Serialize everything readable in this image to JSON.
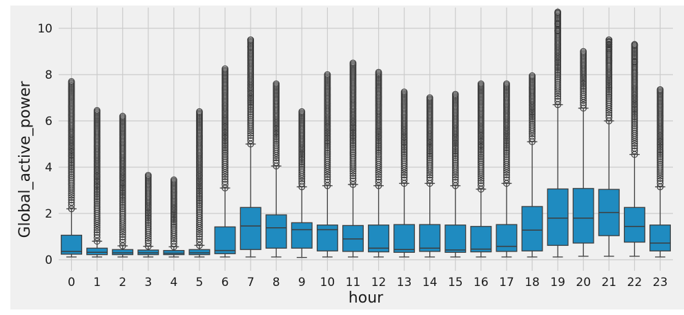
{
  "chart_data": {
    "type": "boxplot",
    "title": "",
    "xlabel": "hour",
    "ylabel": "Global_active_power",
    "ylim": [
      0,
      10.9
    ],
    "yticks": [
      0,
      2,
      4,
      6,
      8,
      10
    ],
    "grid": true,
    "box_color": "#1f8bc0",
    "categories": [
      "0",
      "1",
      "2",
      "3",
      "4",
      "5",
      "6",
      "7",
      "8",
      "9",
      "10",
      "11",
      "12",
      "13",
      "14",
      "15",
      "16",
      "17",
      "18",
      "19",
      "20",
      "21",
      "22",
      "23"
    ],
    "boxes": [
      {
        "hour": "0",
        "whislo": 0.12,
        "q1": 0.24,
        "med": 0.36,
        "q3": 1.06,
        "whishi": 2.2,
        "flier_low": 2.2,
        "flier_high": 7.7
      },
      {
        "hour": "1",
        "whislo": 0.12,
        "q1": 0.22,
        "med": 0.32,
        "q3": 0.5,
        "whishi": 0.8,
        "flier_low": 0.8,
        "flier_high": 6.45
      },
      {
        "hour": "2",
        "whislo": 0.12,
        "q1": 0.22,
        "med": 0.3,
        "q3": 0.44,
        "whishi": 0.6,
        "flier_low": 0.6,
        "flier_high": 6.2
      },
      {
        "hour": "3",
        "whislo": 0.12,
        "q1": 0.22,
        "med": 0.3,
        "q3": 0.42,
        "whishi": 0.58,
        "flier_low": 0.58,
        "flier_high": 3.65
      },
      {
        "hour": "4",
        "whislo": 0.12,
        "q1": 0.22,
        "med": 0.28,
        "q3": 0.4,
        "whishi": 0.56,
        "flier_low": 0.56,
        "flier_high": 3.45
      },
      {
        "hour": "5",
        "whislo": 0.12,
        "q1": 0.22,
        "med": 0.3,
        "q3": 0.44,
        "whishi": 0.62,
        "flier_low": 0.62,
        "flier_high": 6.4
      },
      {
        "hour": "6",
        "whislo": 0.12,
        "q1": 0.26,
        "med": 0.4,
        "q3": 1.42,
        "whishi": 3.1,
        "flier_low": 3.1,
        "flier_high": 8.25
      },
      {
        "hour": "7",
        "whislo": 0.12,
        "q1": 0.44,
        "med": 1.46,
        "q3": 2.26,
        "whishi": 5.0,
        "flier_low": 5.0,
        "flier_high": 9.5
      },
      {
        "hour": "8",
        "whislo": 0.12,
        "q1": 0.5,
        "med": 1.38,
        "q3": 1.94,
        "whishi": 4.05,
        "flier_low": 4.05,
        "flier_high": 7.6
      },
      {
        "hour": "9",
        "whislo": 0.1,
        "q1": 0.5,
        "med": 1.3,
        "q3": 1.6,
        "whishi": 3.15,
        "flier_low": 3.15,
        "flier_high": 6.4
      },
      {
        "hour": "10",
        "whislo": 0.12,
        "q1": 0.38,
        "med": 1.3,
        "q3": 1.5,
        "whishi": 3.2,
        "flier_low": 3.2,
        "flier_high": 8.0
      },
      {
        "hour": "11",
        "whislo": 0.12,
        "q1": 0.36,
        "med": 0.9,
        "q3": 1.48,
        "whishi": 3.25,
        "flier_low": 3.25,
        "flier_high": 8.5
      },
      {
        "hour": "12",
        "whislo": 0.12,
        "q1": 0.34,
        "med": 0.5,
        "q3": 1.5,
        "whishi": 3.2,
        "flier_low": 3.2,
        "flier_high": 8.1
      },
      {
        "hour": "13",
        "whislo": 0.12,
        "q1": 0.32,
        "med": 0.44,
        "q3": 1.52,
        "whishi": 3.3,
        "flier_low": 3.3,
        "flier_high": 7.25
      },
      {
        "hour": "14",
        "whislo": 0.12,
        "q1": 0.36,
        "med": 0.5,
        "q3": 1.52,
        "whishi": 3.3,
        "flier_low": 3.3,
        "flier_high": 7.0
      },
      {
        "hour": "15",
        "whislo": 0.12,
        "q1": 0.32,
        "med": 0.42,
        "q3": 1.5,
        "whishi": 3.2,
        "flier_low": 3.2,
        "flier_high": 7.15
      },
      {
        "hour": "16",
        "whislo": 0.12,
        "q1": 0.34,
        "med": 0.46,
        "q3": 1.44,
        "whishi": 3.05,
        "flier_low": 3.05,
        "flier_high": 7.6
      },
      {
        "hour": "17",
        "whislo": 0.12,
        "q1": 0.36,
        "med": 0.58,
        "q3": 1.52,
        "whishi": 3.3,
        "flier_low": 3.3,
        "flier_high": 7.6
      },
      {
        "hour": "18",
        "whislo": 0.12,
        "q1": 0.38,
        "med": 1.28,
        "q3": 2.3,
        "whishi": 5.1,
        "flier_low": 5.1,
        "flier_high": 7.95
      },
      {
        "hour": "19",
        "whislo": 0.12,
        "q1": 0.62,
        "med": 1.8,
        "q3": 3.06,
        "whishi": 6.7,
        "flier_low": 6.7,
        "flier_high": 10.7
      },
      {
        "hour": "20",
        "whislo": 0.15,
        "q1": 0.72,
        "med": 1.8,
        "q3": 3.08,
        "whishi": 6.55,
        "flier_low": 6.55,
        "flier_high": 9.0
      },
      {
        "hour": "21",
        "whislo": 0.15,
        "q1": 1.04,
        "med": 2.04,
        "q3": 3.04,
        "whishi": 6.0,
        "flier_low": 6.0,
        "flier_high": 9.5
      },
      {
        "hour": "22",
        "whislo": 0.15,
        "q1": 0.76,
        "med": 1.44,
        "q3": 2.26,
        "whishi": 4.55,
        "flier_low": 4.55,
        "flier_high": 9.3
      },
      {
        "hour": "23",
        "whislo": 0.12,
        "q1": 0.38,
        "med": 0.72,
        "q3": 1.5,
        "whishi": 3.15,
        "flier_low": 3.15,
        "flier_high": 7.35
      }
    ],
    "notable_outliers": [
      {
        "hour": "7",
        "values": [
          9.2,
          9.5
        ]
      },
      {
        "hour": "19",
        "values": [
          9.9,
          10.2,
          10.65,
          10.7
        ]
      },
      {
        "hour": "21",
        "values": [
          8.6,
          9.1,
          9.2,
          9.3,
          9.4,
          9.5
        ]
      },
      {
        "hour": "22",
        "values": [
          8.1,
          8.55,
          9.25,
          9.3
        ]
      }
    ]
  }
}
